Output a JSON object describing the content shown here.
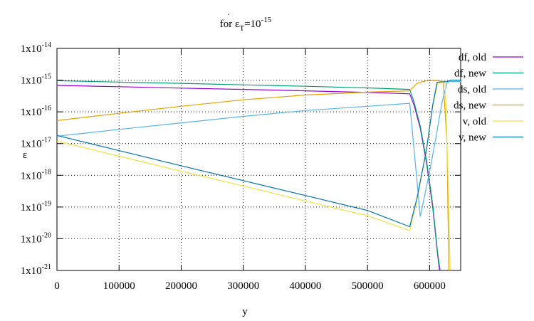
{
  "chart_data": {
    "type": "line",
    "title": {
      "prefix": "for ",
      "symbol": "ε",
      "subscript": "T",
      "equals": "=10",
      "exponent": "-15"
    },
    "xlabel": "y",
    "ylabel": "ε",
    "xlim": [
      0,
      650000
    ],
    "ylim": [
      1e-21,
      1e-14
    ],
    "yscale": "log",
    "grid": true,
    "legend_position": "right",
    "x_ticks": [
      0,
      100000,
      200000,
      300000,
      400000,
      500000,
      600000
    ],
    "y_ticks": [
      {
        "mantissa": "1x10",
        "exponent": "-21",
        "value": 1e-21
      },
      {
        "mantissa": "1x10",
        "exponent": "-20",
        "value": 1e-20
      },
      {
        "mantissa": "1x10",
        "exponent": "-19",
        "value": 1e-19
      },
      {
        "mantissa": "1x10",
        "exponent": "-18",
        "value": 1e-18
      },
      {
        "mantissa": "1x10",
        "exponent": "-17",
        "value": 1e-17
      },
      {
        "mantissa": "1x10",
        "exponent": "-16",
        "value": 1e-16
      },
      {
        "mantissa": "1x10",
        "exponent": "-15",
        "value": 1e-15
      },
      {
        "mantissa": "1x10",
        "exponent": "-14",
        "value": 1e-14
      }
    ],
    "series": [
      {
        "name": "df, old",
        "color": "#9400d3",
        "points": [
          [
            0,
            6.8e-16
          ],
          [
            100000,
            6.2e-16
          ],
          [
            200000,
            5.6e-16
          ],
          [
            300000,
            5.1e-16
          ],
          [
            400000,
            4.6e-16
          ],
          [
            500000,
            4.1e-16
          ],
          [
            568000,
            3.7e-16
          ],
          [
            575000,
            1.6e-16
          ],
          [
            585000,
            3e-17
          ],
          [
            595000,
            2.5e-18
          ],
          [
            605000,
            1e-19
          ],
          [
            613000,
            3e-21
          ],
          [
            616000,
            1e-21
          ]
        ]
      },
      {
        "name": "df, new",
        "color": "#009e73",
        "points": [
          [
            0,
            9.6e-16
          ],
          [
            100000,
            8.7e-16
          ],
          [
            200000,
            7.9e-16
          ],
          [
            300000,
            7.1e-16
          ],
          [
            400000,
            6.4e-16
          ],
          [
            500000,
            5.7e-16
          ],
          [
            568000,
            5.1e-16
          ],
          [
            575000,
            2e-16
          ],
          [
            585000,
            3.5e-17
          ],
          [
            595000,
            3e-18
          ],
          [
            605000,
            1.2e-19
          ],
          [
            613000,
            3.5e-21
          ],
          [
            617000,
            1e-21
          ]
        ]
      },
      {
        "name": "ds, old",
        "color": "#56b4e9",
        "points": [
          [
            0,
            1.7e-17
          ],
          [
            100000,
            2.8e-17
          ],
          [
            200000,
            4.5e-17
          ],
          [
            300000,
            7.2e-17
          ],
          [
            400000,
            1.1e-16
          ],
          [
            500000,
            1.5e-16
          ],
          [
            568000,
            1.85e-16
          ],
          [
            585000,
            5e-20
          ],
          [
            600000,
            1.3e-18
          ],
          [
            610000,
            1.5e-17
          ],
          [
            620000,
            2e-16
          ],
          [
            628000,
            8e-16
          ],
          [
            632000,
            9e-16
          ],
          [
            650000,
            9e-16
          ]
        ]
      },
      {
        "name": "ds, new",
        "color": "#e69f00",
        "points": [
          [
            0,
            5.3e-17
          ],
          [
            100000,
            9e-17
          ],
          [
            200000,
            1.5e-16
          ],
          [
            300000,
            2.4e-16
          ],
          [
            400000,
            3.4e-16
          ],
          [
            500000,
            4.2e-16
          ],
          [
            568000,
            4.6e-16
          ],
          [
            580000,
            8e-16
          ],
          [
            595000,
            9.6e-16
          ],
          [
            610000,
            9.8e-16
          ],
          [
            622000,
            9e-16
          ],
          [
            628000,
            1e-17
          ],
          [
            631000,
            1e-21
          ]
        ]
      },
      {
        "name": "v, old",
        "color": "#f0e442",
        "points": [
          [
            0,
            1.2e-17
          ],
          [
            100000,
            4e-18
          ],
          [
            200000,
            1.35e-18
          ],
          [
            300000,
            4.6e-19
          ],
          [
            400000,
            1.55e-19
          ],
          [
            500000,
            5.3e-20
          ],
          [
            568000,
            1.8e-20
          ],
          [
            580000,
            1.8e-19
          ],
          [
            595000,
            6e-18
          ],
          [
            605000,
            1.5e-16
          ],
          [
            613000,
            8e-16
          ],
          [
            625000,
            9.8e-16
          ],
          [
            630000,
            5e-19
          ],
          [
            633000,
            1e-21
          ]
        ]
      },
      {
        "name": "v, new",
        "color": "#0072b2",
        "points": [
          [
            0,
            1.8e-17
          ],
          [
            100000,
            6e-18
          ],
          [
            200000,
            2e-18
          ],
          [
            300000,
            6.8e-19
          ],
          [
            400000,
            2.3e-19
          ],
          [
            500000,
            7.8e-20
          ],
          [
            568000,
            2.4e-20
          ],
          [
            580000,
            2e-19
          ],
          [
            595000,
            6.5e-18
          ],
          [
            605000,
            1.6e-16
          ],
          [
            612000,
            8.5e-16
          ],
          [
            628000,
            9e-16
          ],
          [
            635000,
            1e-15
          ],
          [
            650000,
            1e-15
          ]
        ]
      }
    ]
  }
}
